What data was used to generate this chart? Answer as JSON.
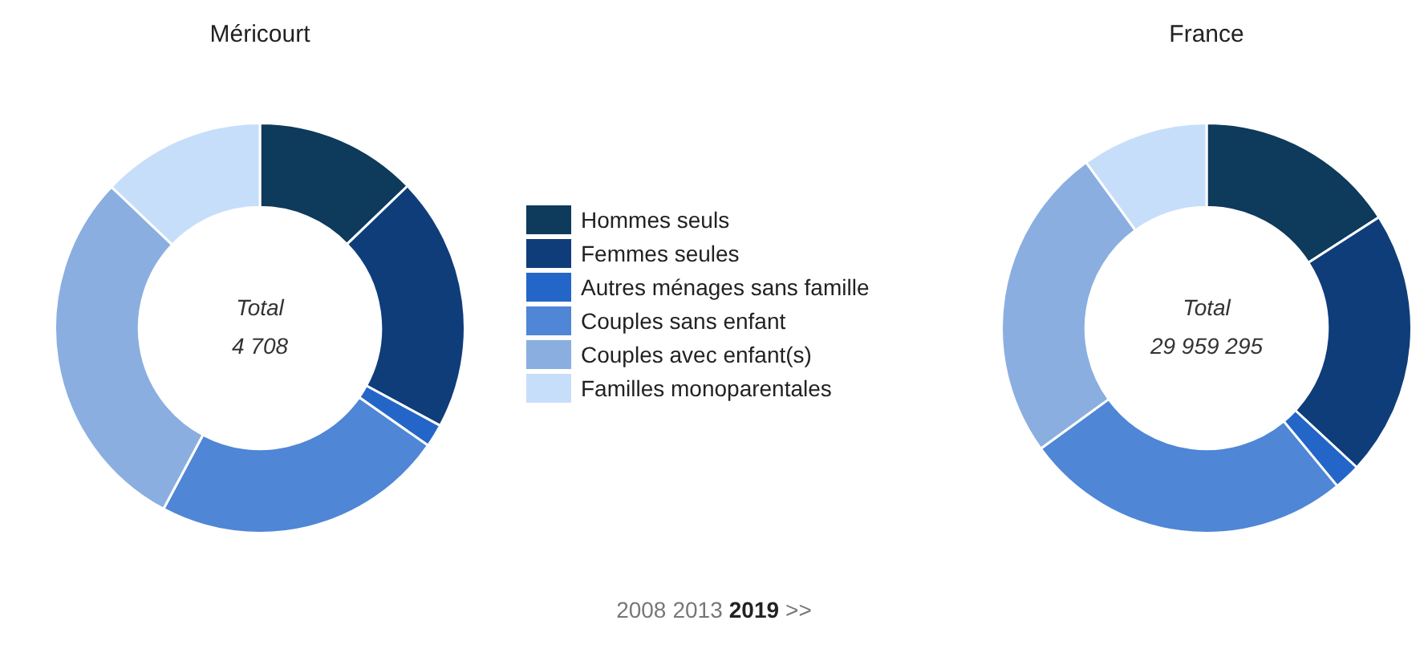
{
  "chart_data": [
    {
      "type": "donut",
      "categories": [
        "Hommes seuls",
        "Femmes seules",
        "Autres ménages sans famille",
        "Couples sans enfant",
        "Couples avec enfant(s)",
        "Familles monoparentales"
      ],
      "colors": [
        "#0e3a5c",
        "#0f3d7a",
        "#2466c8",
        "#4f86d6",
        "#8aaee0",
        "#c6defa"
      ],
      "series": [
        {
          "name": "Méricourt",
          "values": [
            12.8,
            20.1,
            1.8,
            23.1,
            29.3,
            12.9
          ]
        },
        {
          "name": "France",
          "values": [
            15.9,
            21.0,
            2.1,
            26.0,
            25.0,
            10.0
          ]
        }
      ],
      "annotations": [
        "Total",
        "4 708",
        "Total",
        "29 959 295"
      ],
      "legend": "right"
    },
    {
      "type": "other",
      "annotations": [
        "2008",
        "2013",
        "2019",
        ">>"
      ]
    }
  ]
}
